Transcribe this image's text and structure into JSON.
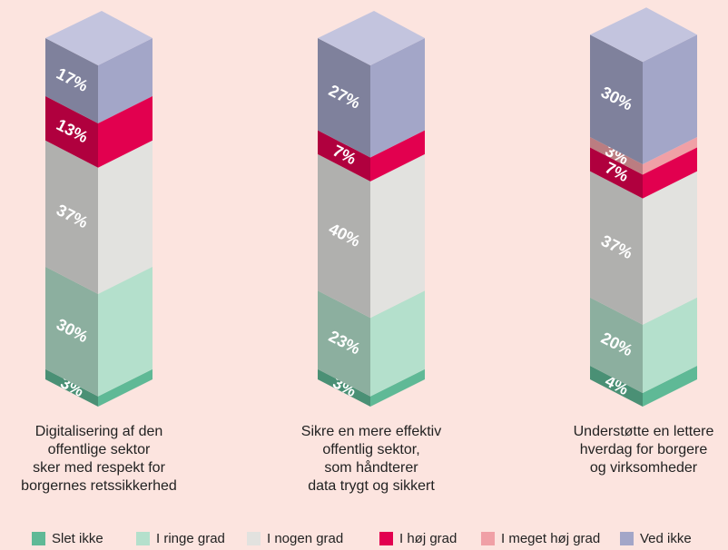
{
  "chart_data": {
    "type": "stacked-bar-3d",
    "categories": [
      "Digitalisering af den\noffentlige sektor\nsker med respekt for\nborgernes retssikkerhed",
      "Sikre en mere effektiv\noffentlig sektor,\nsom håndterer\ndata trygt og sikkert",
      "Understøtte en lettere\nhverdag for borgere\nog virksomheder"
    ],
    "series": [
      {
        "name": "Slet ikke",
        "color": "#5fb996",
        "values": [
          3,
          3,
          4
        ],
        "value_labels": [
          "3%",
          "3%",
          "4%"
        ]
      },
      {
        "name": "I ringe grad",
        "color": "#b4e0cc",
        "values": [
          30,
          23,
          20
        ],
        "value_labels": [
          "30%",
          "23%",
          "20%"
        ]
      },
      {
        "name": "I nogen grad",
        "color": "#e2e2df",
        "values": [
          37,
          40,
          37
        ],
        "value_labels": [
          "37%",
          "40%",
          "37%"
        ]
      },
      {
        "name": "I høj grad",
        "color": "#e2004f",
        "values": [
          13,
          7,
          7
        ],
        "value_labels": [
          "13%",
          "7%",
          "7%"
        ]
      },
      {
        "name": "I meget høj grad",
        "color": "#f0a0a6",
        "values": [
          null,
          null,
          3
        ],
        "value_labels": [
          null,
          null,
          "3%"
        ]
      },
      {
        "name": "Ved ikke",
        "color": "#a3a6c8",
        "values": [
          17,
          27,
          30
        ],
        "value_labels": [
          "17%",
          "27%",
          "30%"
        ]
      }
    ]
  }
}
